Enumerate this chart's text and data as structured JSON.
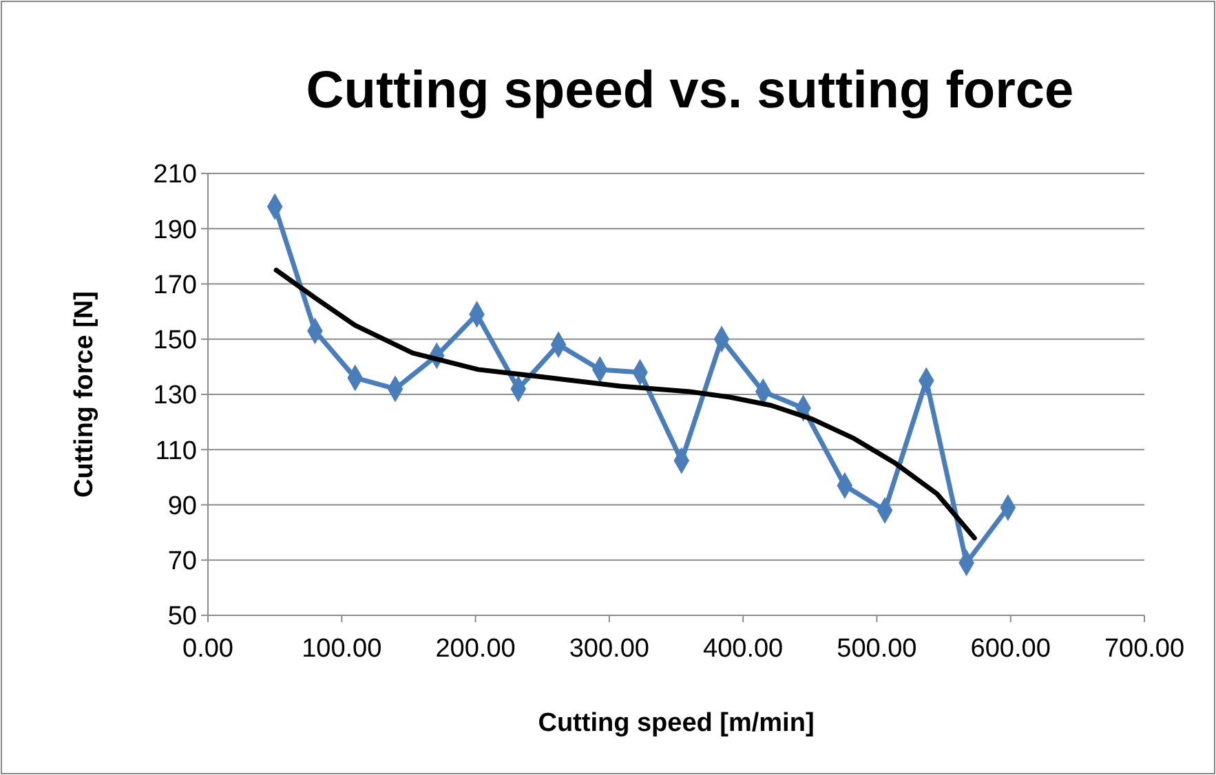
{
  "chart_data": {
    "type": "line",
    "title": "Cutting speed vs. sutting force",
    "xlabel": "Cutting speed [m/min]",
    "ylabel": "Cutting force [N]",
    "xlim": [
      0,
      700
    ],
    "xticks": [
      {
        "value": 0,
        "label": "0.00"
      },
      {
        "value": 100,
        "label": "100.00"
      },
      {
        "value": 200,
        "label": "200.00"
      },
      {
        "value": 300,
        "label": "300.00"
      },
      {
        "value": 400,
        "label": "400.00"
      },
      {
        "value": 500,
        "label": "500.00"
      },
      {
        "value": 600,
        "label": "600.00"
      },
      {
        "value": 700,
        "label": "700.00"
      }
    ],
    "ylim": [
      50,
      210
    ],
    "yticks": [
      50,
      70,
      90,
      110,
      130,
      150,
      170,
      190,
      210
    ],
    "grid": "y",
    "series": [
      {
        "color": "#4a7ebb",
        "marker": "diamond",
        "x": [
          50,
          80,
          110,
          140,
          171,
          201,
          232,
          262,
          293,
          323,
          354,
          384,
          415,
          445,
          476,
          506,
          537,
          567,
          598
        ],
        "values": [
          198,
          153,
          136,
          132,
          144,
          159,
          132,
          148,
          139,
          138,
          106,
          150,
          131,
          125,
          97,
          88,
          135,
          69,
          89
        ]
      },
      {
        "color": "#000000",
        "marker": "none",
        "x": [
          51,
          80,
          110,
          153,
          202,
          256,
          308,
          360,
          390,
          421,
          452,
          483,
          514,
          545,
          573
        ],
        "values": [
          175,
          165,
          155,
          145,
          139,
          136,
          133,
          131,
          129,
          126,
          121,
          114,
          105,
          94,
          78
        ]
      }
    ]
  }
}
